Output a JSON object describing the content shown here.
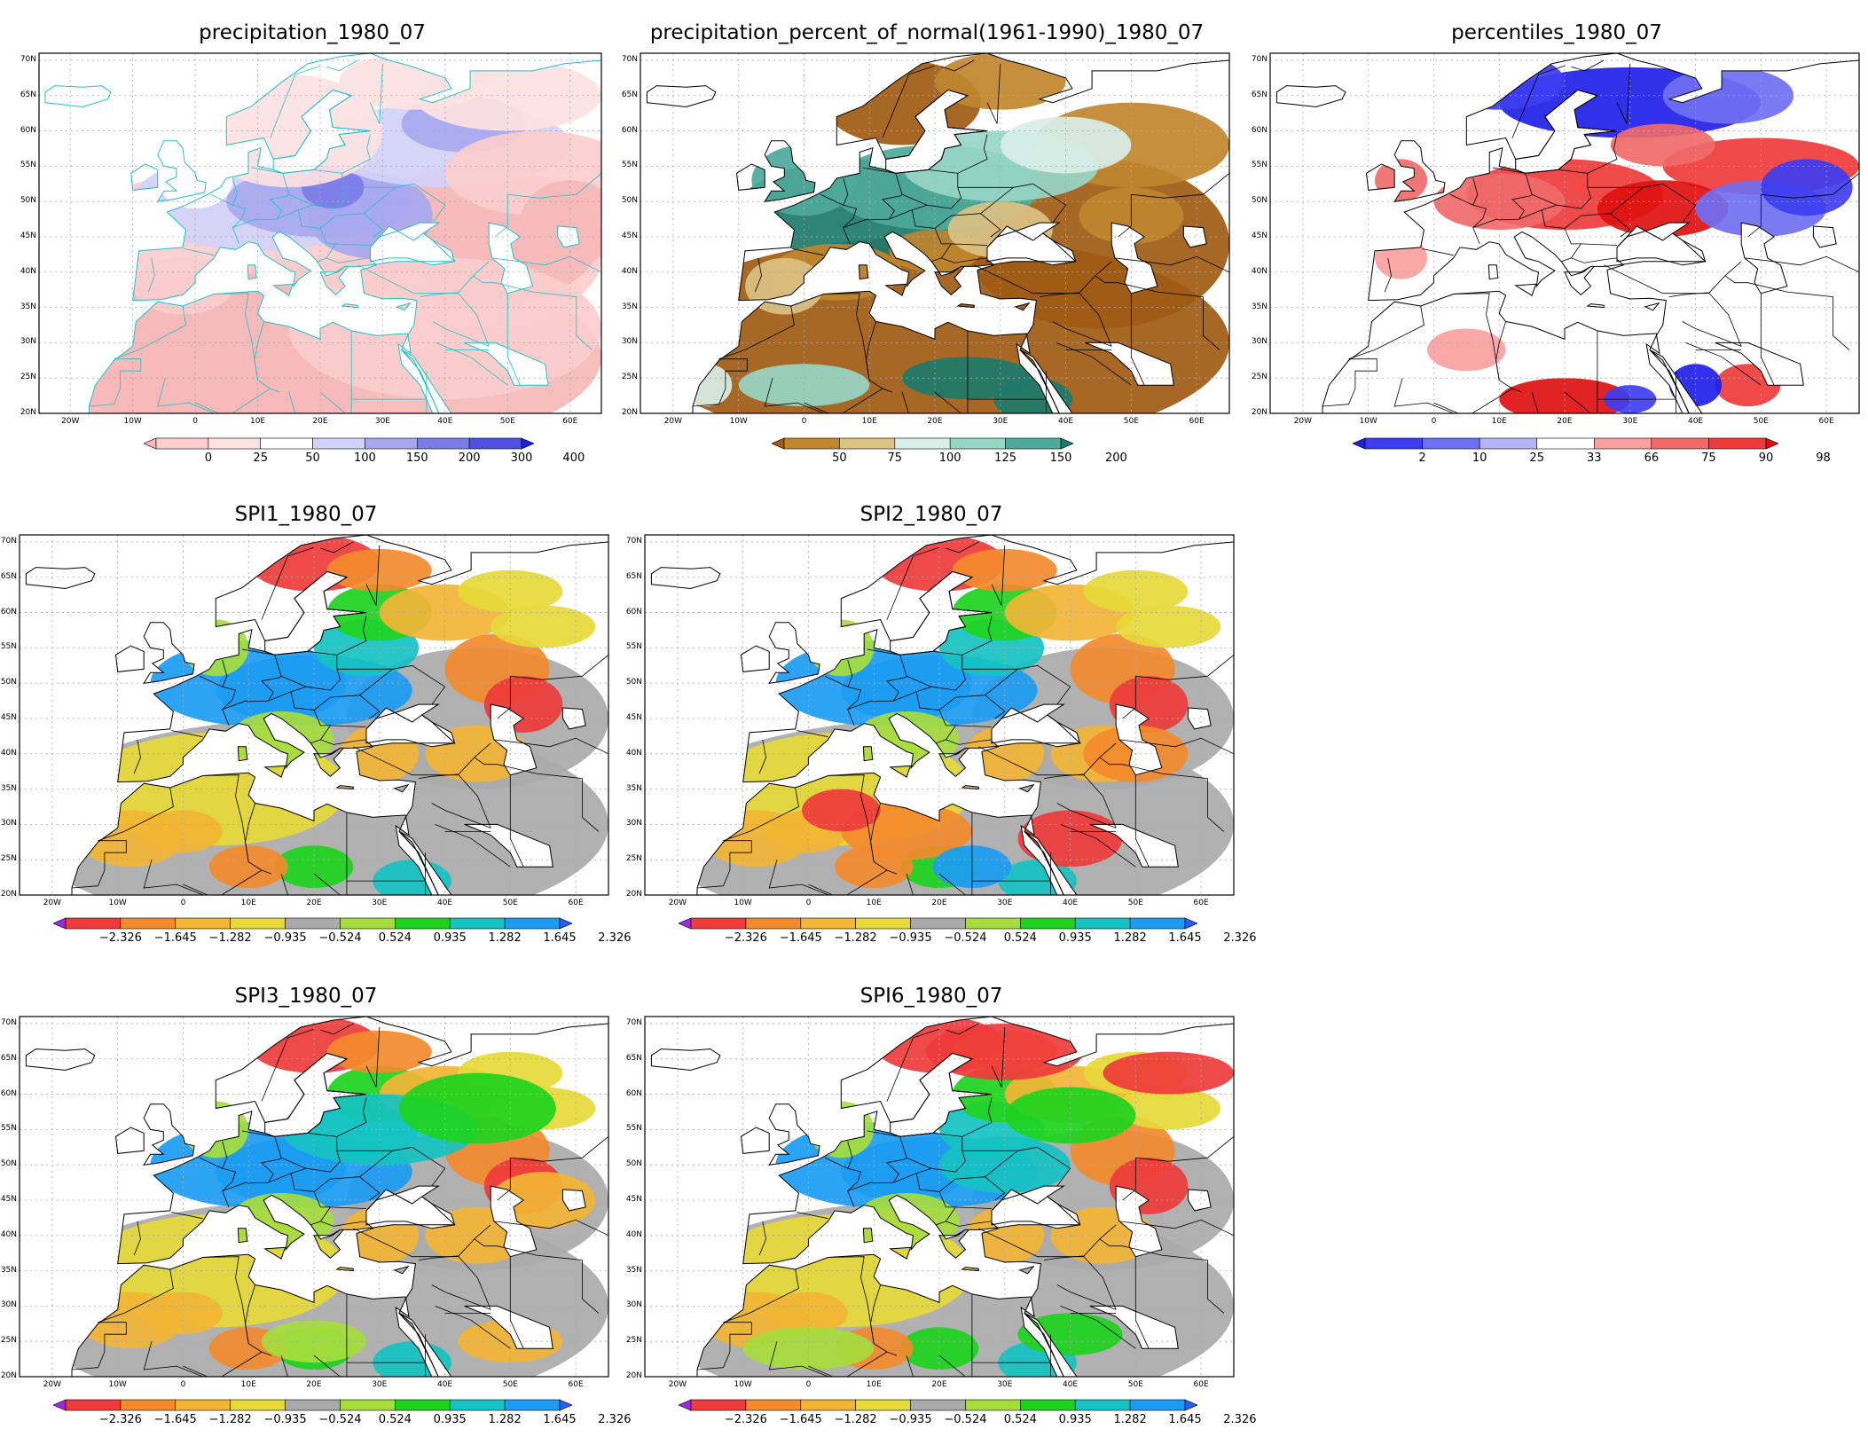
{
  "lat_labels": [
    "70N",
    "65N",
    "60N",
    "55N",
    "50N",
    "45N",
    "40N",
    "35N",
    "30N",
    "25N",
    "20N"
  ],
  "lon_labels": [
    "20W",
    "10W",
    "0",
    "10E",
    "20E",
    "30E",
    "40E",
    "50E",
    "60E"
  ],
  "panels": [
    {
      "id": "precip",
      "title": "precipitation_1980_07",
      "scheme": "precip",
      "colorbar": {
        "labels": [
          "0",
          "25",
          "50",
          "100",
          "150",
          "200",
          "300",
          "400"
        ],
        "colors": [
          "#f6b9b9",
          "#fbcdcd",
          "#fde2e2",
          "#ffffff",
          "#d2d2f8",
          "#a8a8f0",
          "#7c7ce8",
          "#4f4fe0",
          "#2020d8"
        ]
      }
    },
    {
      "id": "pct",
      "title": "precipitation_percent_of_normal(1961-1990)_1980_07",
      "scheme": "pct",
      "colorbar": {
        "labels": [
          "50",
          "75",
          "100",
          "125",
          "150",
          "200"
        ],
        "colors": [
          "#a05a12",
          "#c0862e",
          "#dcc283",
          "#d8efe8",
          "#97d6c5",
          "#4ea99b",
          "#1c7a6a"
        ]
      }
    },
    {
      "id": "perc",
      "title": "percentiles_1980_07",
      "scheme": "perc",
      "colorbar": {
        "labels": [
          "2",
          "10",
          "25",
          "33",
          "66",
          "75",
          "90",
          "98"
        ],
        "colors": [
          "#1f1fe8",
          "#3d3df0",
          "#6f6ff2",
          "#b4b4f8",
          "#ffffff",
          "#f8a0a0",
          "#f06a6a",
          "#ee3a3a",
          "#e01010"
        ]
      }
    },
    {
      "id": "spi1",
      "title": "SPI1_1980_07",
      "scheme": "spi",
      "colorbar": {
        "labels": [
          "−2.326",
          "−1.645",
          "−1.282",
          "−0.935",
          "−0.524",
          "0.524",
          "0.935",
          "1.282",
          "1.645",
          "2.326"
        ],
        "colors": [
          "#9a2ae0",
          "#ee3b3b",
          "#f38a2c",
          "#f2b535",
          "#e6d93a",
          "#aaaaaa",
          "#a6dd3d",
          "#1ed21e",
          "#16c2c2",
          "#1b9cf2",
          "#2a5cf6"
        ]
      }
    },
    {
      "id": "spi2",
      "title": "SPI2_1980_07",
      "scheme": "spi",
      "colorbar": {
        "labels": [
          "−2.326",
          "−1.645",
          "−1.282",
          "−0.935",
          "−0.524",
          "0.524",
          "0.935",
          "1.282",
          "1.645",
          "2.326"
        ],
        "colors": [
          "#9a2ae0",
          "#ee3b3b",
          "#f38a2c",
          "#f2b535",
          "#e6d93a",
          "#aaaaaa",
          "#a6dd3d",
          "#1ed21e",
          "#16c2c2",
          "#1b9cf2",
          "#2a5cf6"
        ]
      }
    },
    {
      "id": "spi3",
      "title": "SPI3_1980_07",
      "scheme": "spi",
      "colorbar": {
        "labels": [
          "−2.326",
          "−1.645",
          "−1.282",
          "−0.935",
          "−0.524",
          "0.524",
          "0.935",
          "1.282",
          "1.645",
          "2.326"
        ],
        "colors": [
          "#9a2ae0",
          "#ee3b3b",
          "#f38a2c",
          "#f2b535",
          "#e6d93a",
          "#aaaaaa",
          "#a6dd3d",
          "#1ed21e",
          "#16c2c2",
          "#1b9cf2",
          "#2a5cf6"
        ]
      }
    },
    {
      "id": "spi6",
      "title": "SPI6_1980_07",
      "scheme": "spi",
      "colorbar": {
        "labels": [
          "−2.326",
          "−1.645",
          "−1.282",
          "−0.935",
          "−0.524",
          "0.524",
          "0.935",
          "1.282",
          "1.645",
          "2.326"
        ],
        "colors": [
          "#9a2ae0",
          "#ee3b3b",
          "#f38a2c",
          "#f2b535",
          "#e6d93a",
          "#aaaaaa",
          "#a6dd3d",
          "#1ed21e",
          "#16c2c2",
          "#1b9cf2",
          "#2a5cf6"
        ]
      }
    }
  ],
  "colors": {
    "coastline": "#000000",
    "coastline_precip": "#22c0c8",
    "gridline": "#aaaaaa",
    "frame": "#000000"
  }
}
